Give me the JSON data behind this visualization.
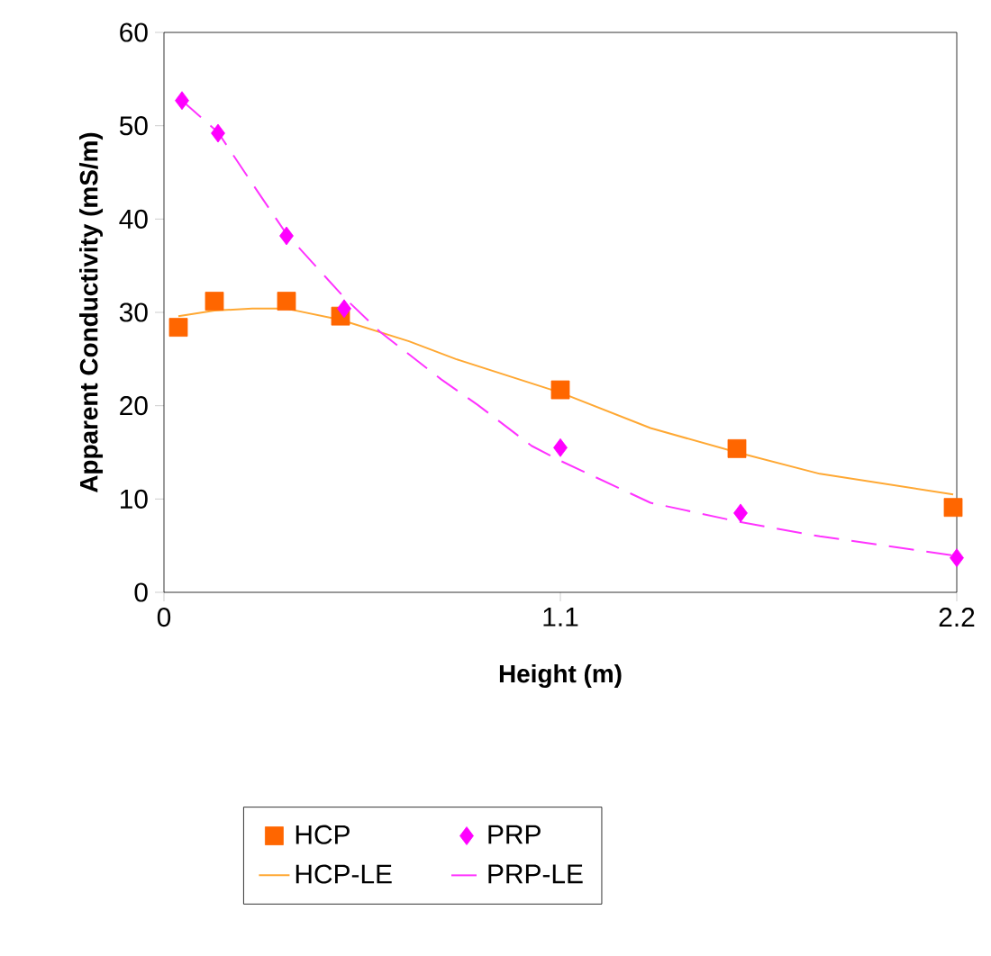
{
  "chart_data": {
    "type": "scatter",
    "xlabel": "Height (m)",
    "ylabel": "Apparent Conductivity (mS/m)",
    "xlim": [
      0,
      2.2
    ],
    "ylim": [
      0,
      60
    ],
    "xticks": [
      0,
      1.1,
      2.2
    ],
    "yticks": [
      0,
      10,
      20,
      30,
      40,
      50,
      60
    ],
    "legend": "bottom",
    "grid": false,
    "series": [
      {
        "name": "HCP",
        "marker": "square",
        "color": "#ff6600",
        "x": [
          0.04,
          0.14,
          0.34,
          0.49,
          1.1,
          1.59,
          2.19
        ],
        "values": [
          28.4,
          31.2,
          31.2,
          29.6,
          21.7,
          15.4,
          9.1
        ]
      },
      {
        "name": "PRP",
        "marker": "diamond",
        "color": "#ff00ff",
        "x": [
          0.05,
          0.15,
          0.34,
          0.5,
          1.1,
          1.6,
          2.2
        ],
        "values": [
          52.7,
          49.2,
          38.2,
          30.4,
          15.5,
          8.5,
          3.7
        ]
      },
      {
        "name": "HCP-LE",
        "type": "line",
        "line_style": "solid",
        "color": "#ffa833",
        "x": [
          0.04,
          0.14,
          0.245,
          0.34,
          0.49,
          0.68,
          0.81,
          1.1,
          1.35,
          1.59,
          1.82,
          2.19
        ],
        "values": [
          29.6,
          30.2,
          30.4,
          30.4,
          29.2,
          26.9,
          25,
          21.4,
          17.6,
          15,
          12.7,
          10.5
        ]
      },
      {
        "name": "PRP-LE",
        "type": "line",
        "line_style": "dashed",
        "color": "#ff33ff",
        "x": [
          0.05,
          0.15,
          0.245,
          0.34,
          0.5,
          0.6,
          0.77,
          0.87,
          1.02,
          1.1,
          1.35,
          1.59,
          1.82,
          2.2
        ],
        "values": [
          52.7,
          49.3,
          43.8,
          38.4,
          31.6,
          27.9,
          22.8,
          20.1,
          15.7,
          14.1,
          9.6,
          7.6,
          6.0,
          3.9
        ]
      }
    ]
  }
}
